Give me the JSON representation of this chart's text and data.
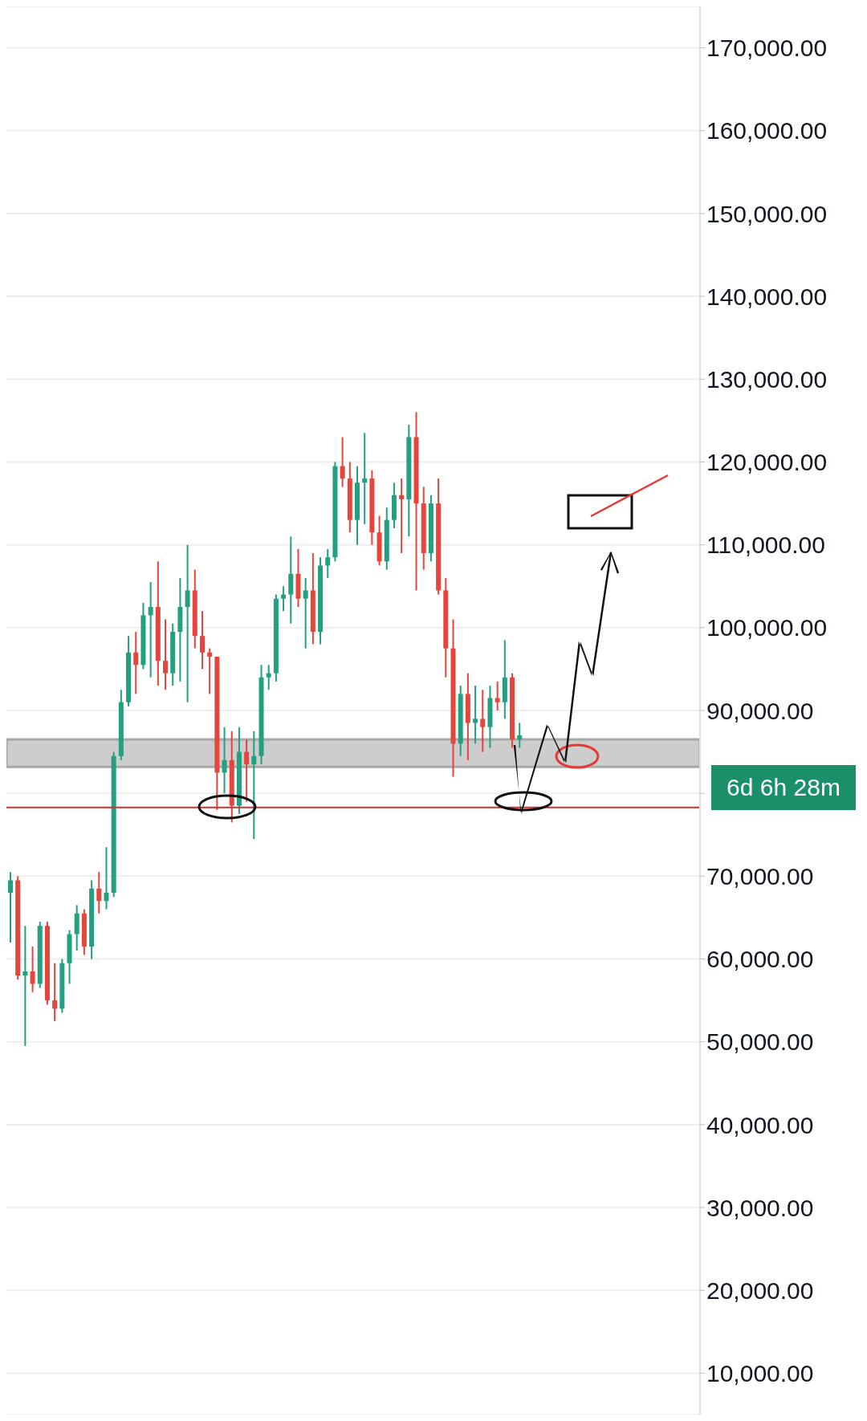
{
  "chart_data": {
    "type": "candlestick",
    "categories": [
      null,
      null,
      null,
      null,
      null,
      null,
      null,
      null,
      null,
      null,
      null,
      null,
      null,
      null,
      null,
      null,
      null,
      null,
      null,
      null,
      null,
      null,
      null,
      null,
      null,
      null,
      null,
      null,
      null,
      null,
      null,
      null,
      null,
      null,
      null,
      null,
      null,
      null,
      null,
      null,
      null,
      null,
      null,
      null,
      null,
      null,
      null,
      null,
      null,
      null,
      null,
      null,
      null,
      null,
      null,
      null,
      null,
      null,
      null,
      null,
      null,
      null,
      null,
      null,
      null,
      null,
      null,
      null,
      null,
      null,
      null,
      null,
      null,
      null,
      null,
      null,
      null,
      null,
      null,
      null,
      null,
      null,
      null,
      null,
      null,
      null,
      null,
      null,
      null,
      null,
      null,
      null,
      null,
      null
    ],
    "ohlc": [
      [
        68000,
        70500,
        62000,
        69500
      ],
      [
        69500,
        70000,
        57500,
        58000
      ],
      [
        58000,
        64000,
        49500,
        58500
      ],
      [
        58500,
        61500,
        56000,
        57000
      ],
      [
        57000,
        64500,
        56500,
        64000
      ],
      [
        64000,
        64500,
        54500,
        55000
      ],
      [
        55000,
        59500,
        52500,
        54000
      ],
      [
        54000,
        60000,
        53500,
        59500
      ],
      [
        59500,
        63500,
        57000,
        63000
      ],
      [
        63000,
        66500,
        61000,
        65500
      ],
      [
        65500,
        66000,
        60500,
        61500
      ],
      [
        61500,
        69500,
        60000,
        68500
      ],
      [
        68500,
        70500,
        65500,
        67000
      ],
      [
        67000,
        73500,
        66000,
        68000
      ],
      [
        68000,
        85000,
        67500,
        84500
      ],
      [
        84500,
        92500,
        84000,
        91000
      ],
      [
        91000,
        99000,
        90500,
        97000
      ],
      [
        97000,
        99500,
        92000,
        95500
      ],
      [
        95500,
        103000,
        95000,
        101500
      ],
      [
        101500,
        105500,
        94000,
        102500
      ],
      [
        102500,
        108000,
        93000,
        96000
      ],
      [
        96000,
        101000,
        92500,
        94500
      ],
      [
        94500,
        100500,
        93000,
        99500
      ],
      [
        99500,
        106000,
        93500,
        102500
      ],
      [
        102500,
        110000,
        91000,
        104500
      ],
      [
        104500,
        107000,
        97500,
        99000
      ],
      [
        99000,
        102000,
        95000,
        97000
      ],
      [
        97000,
        97500,
        92000,
        96500
      ],
      [
        96500,
        96500,
        78000,
        82500
      ],
      [
        82500,
        88000,
        80000,
        84000
      ],
      [
        84000,
        87500,
        76500,
        78500
      ],
      [
        78500,
        88000,
        77500,
        85000
      ],
      [
        85000,
        86500,
        79000,
        83500
      ],
      [
        83500,
        87500,
        74500,
        84500
      ],
      [
        84500,
        95500,
        83500,
        94000
      ],
      [
        94000,
        95500,
        92500,
        94500
      ],
      [
        94500,
        104000,
        93500,
        103500
      ],
      [
        103500,
        105000,
        102000,
        104000
      ],
      [
        104000,
        111000,
        100500,
        106500
      ],
      [
        106500,
        109500,
        102500,
        103500
      ],
      [
        103500,
        106000,
        97500,
        104500
      ],
      [
        104500,
        109000,
        98000,
        99500
      ],
      [
        99500,
        108500,
        98000,
        107500
      ],
      [
        107500,
        109500,
        106000,
        108500
      ],
      [
        108500,
        120000,
        108000,
        119500
      ],
      [
        119500,
        123000,
        117000,
        118000
      ],
      [
        118000,
        120000,
        111500,
        113000
      ],
      [
        113000,
        119500,
        110000,
        117500
      ],
      [
        117500,
        123500,
        112500,
        118000
      ],
      [
        118000,
        119000,
        110000,
        111500
      ],
      [
        111500,
        113500,
        107500,
        108000
      ],
      [
        108000,
        114500,
        107000,
        113000
      ],
      [
        113000,
        117500,
        112000,
        116000
      ],
      [
        116000,
        118000,
        109000,
        115500
      ],
      [
        115500,
        124500,
        111000,
        123000
      ],
      [
        123000,
        126000,
        104500,
        115000
      ],
      [
        115000,
        117000,
        107000,
        109000
      ],
      [
        109000,
        116000,
        108000,
        115000
      ],
      [
        115000,
        118000,
        104000,
        104500
      ],
      [
        104500,
        106000,
        94000,
        97500
      ],
      [
        97500,
        101000,
        82000,
        86000
      ],
      [
        86000,
        93000,
        84500,
        92000
      ],
      [
        92000,
        94500,
        84000,
        88500
      ],
      [
        88500,
        93000,
        86000,
        89000
      ],
      [
        89000,
        92500,
        85000,
        88000
      ],
      [
        88000,
        93000,
        85500,
        91500
      ],
      [
        91500,
        93500,
        90000,
        91000
      ],
      [
        91000,
        98500,
        89000,
        94000
      ],
      [
        94000,
        94500,
        85500,
        86500
      ],
      [
        86500,
        88500,
        85500,
        87000
      ],
      null,
      null,
      null,
      null,
      null,
      null,
      null,
      null,
      null,
      null,
      null,
      null,
      null,
      null,
      null,
      null,
      null,
      null,
      null,
      null,
      null,
      null,
      null,
      null
    ],
    "colors": [
      "#22a07f",
      "#e5453a",
      "#22a07f",
      "#e5453a",
      "#22a07f",
      "#e5453a",
      "#e5453a",
      "#22a07f",
      "#22a07f",
      "#22a07f",
      "#e5453a",
      "#22a07f",
      "#e5453a",
      "#22a07f",
      "#22a07f",
      "#22a07f",
      "#22a07f",
      "#e5453a",
      "#22a07f",
      "#22a07f",
      "#e5453a",
      "#e5453a",
      "#22a07f",
      "#22a07f",
      "#22a07f",
      "#e5453a",
      "#e5453a",
      "#e5453a",
      "#e5453a",
      "#22a07f",
      "#e5453a",
      "#22a07f",
      "#e5453a",
      "#22a07f",
      "#22a07f",
      "#22a07f",
      "#22a07f",
      "#22a07f",
      "#22a07f",
      "#e5453a",
      "#22a07f",
      "#e5453a",
      "#22a07f",
      "#22a07f",
      "#22a07f",
      "#e5453a",
      "#e5453a",
      "#22a07f",
      "#22a07f",
      "#e5453a",
      "#e5453a",
      "#22a07f",
      "#22a07f",
      "#e5453a",
      "#22a07f",
      "#e5453a",
      "#e5453a",
      "#22a07f",
      "#e5453a",
      "#e5453a",
      "#e5453a",
      "#22a07f",
      "#e5453a",
      "#22a07f",
      "#e5453a",
      "#22a07f",
      "#e5453a",
      "#22a07f",
      "#e5453a",
      "#22a07f",
      null,
      null,
      null,
      null,
      null,
      null,
      null,
      null,
      null,
      null,
      null,
      null,
      null,
      null,
      null,
      null,
      null,
      null,
      null,
      null,
      null,
      null,
      null,
      null
    ],
    "ylim": [
      5000,
      175000
    ],
    "yticks": [
      {
        "value": 10000,
        "label": "10,000.00"
      },
      {
        "value": 20000,
        "label": "20,000.00"
      },
      {
        "value": 30000,
        "label": "30,000.00"
      },
      {
        "value": 40000,
        "label": "40,000.00"
      },
      {
        "value": 50000,
        "label": "50,000.00"
      },
      {
        "value": 60000,
        "label": "60,000.00"
      },
      {
        "value": 70000,
        "label": "70,000.00"
      },
      {
        "value": 80000,
        "label": null
      },
      {
        "value": 90000,
        "label": "90,000.00"
      },
      {
        "value": 100000,
        "label": "100,000.00"
      },
      {
        "value": 110000,
        "label": "110,000.00"
      },
      {
        "value": 120000,
        "label": "120,000.00"
      },
      {
        "value": 130000,
        "label": "130,000.00"
      },
      {
        "value": 140000,
        "label": "140,000.00"
      },
      {
        "value": 150000,
        "label": "150,000.00"
      },
      {
        "value": 160000,
        "label": "160,000.00"
      },
      {
        "value": 170000,
        "label": "170,000.00"
      }
    ],
    "grid": "y",
    "tick_labels": "y",
    "ref_lines": [
      {
        "axis": "y",
        "value": 78300,
        "color": "#d32f2f"
      }
    ],
    "bands": [
      {
        "axis": "y",
        "from": 83200,
        "to": 86500,
        "color": "#c4c4c4"
      }
    ],
    "annotations": [
      "6d 6h 28m"
    ]
  }
}
